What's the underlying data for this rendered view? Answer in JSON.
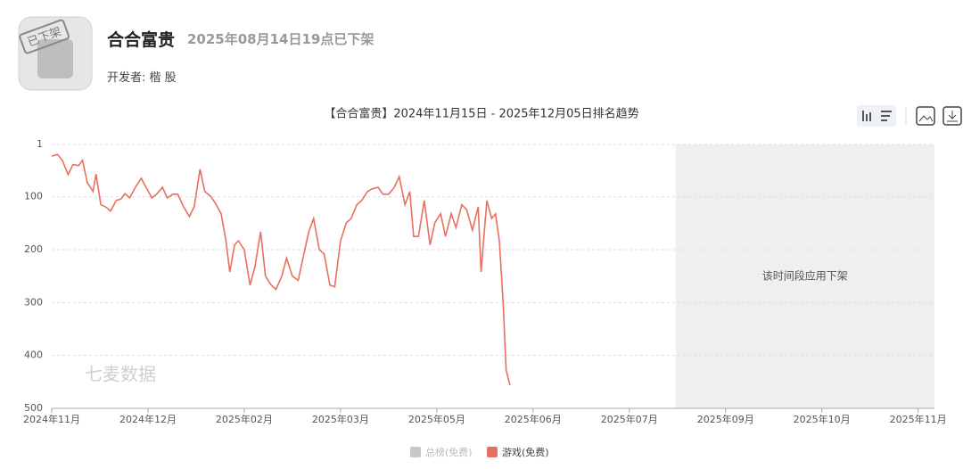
{
  "header": {
    "icon_stamp": "已下架",
    "title": "合合富贵",
    "status": "2025年08月14日19点已下架",
    "developer_label": "开发者:",
    "developer": "楷 股"
  },
  "chart_data": {
    "type": "line",
    "title": "【合合富贵】2024年11月15日 - 2025年12月05日排名趋势",
    "watermark": "七麦数据",
    "offline_label": "该时间段应用下架",
    "offline_range": [
      6.48,
      9.17
    ],
    "xlim": [
      0,
      9.17
    ],
    "xticks": [
      {
        "value": 0,
        "label": "2024年11月"
      },
      {
        "value": 1,
        "label": "2024年12月"
      },
      {
        "value": 2,
        "label": "2025年02月"
      },
      {
        "value": 3,
        "label": "2025年03月"
      },
      {
        "value": 4,
        "label": "2025年05月"
      },
      {
        "value": 5,
        "label": "2025年06月"
      },
      {
        "value": 6,
        "label": "2025年07月"
      },
      {
        "value": 7,
        "label": "2025年09月"
      },
      {
        "value": 8,
        "label": "2025年10月"
      },
      {
        "value": 9,
        "label": "2025年11月"
      }
    ],
    "ylim": [
      1,
      500
    ],
    "y_inverted": true,
    "yticks": [
      1,
      100,
      200,
      300,
      400,
      500
    ],
    "grid": true,
    "x": [
      0,
      0.06,
      0.11,
      0.17,
      0.22,
      0.28,
      0.32,
      0.37,
      0.43,
      0.46,
      0.51,
      0.56,
      0.61,
      0.67,
      0.72,
      0.76,
      0.81,
      0.87,
      0.93,
      0.98,
      1.04,
      1.09,
      1.15,
      1.2,
      1.26,
      1.31,
      1.37,
      1.43,
      1.48,
      1.54,
      1.59,
      1.65,
      1.7,
      1.76,
      1.81,
      1.85,
      1.9,
      1.94,
      2,
      2.06,
      2.11,
      2.17,
      2.22,
      2.28,
      2.33,
      2.39,
      2.44,
      2.5,
      2.56,
      2.61,
      2.67,
      2.72,
      2.78,
      2.83,
      2.89,
      2.94,
      3,
      3.06,
      3.11,
      3.17,
      3.22,
      3.28,
      3.33,
      3.39,
      3.44,
      3.5,
      3.56,
      3.61,
      3.67,
      3.72,
      3.76,
      3.81,
      3.87,
      3.93,
      3.98,
      4.04,
      4.09,
      4.15,
      4.2,
      4.26,
      4.31,
      4.37,
      4.43,
      4.46,
      4.52,
      4.57,
      4.61,
      4.65,
      4.69,
      4.72,
      4.76
    ],
    "series": [
      {
        "name": "总榜(免费)",
        "color": "#c8c8c8",
        "hidden": true
      },
      {
        "name": "游戏(免费)",
        "color": "#e8705f",
        "values": [
          23,
          20,
          31,
          58,
          39,
          41,
          31,
          73,
          90,
          57,
          115,
          119,
          127,
          107,
          104,
          94,
          102,
          82,
          65,
          82,
          102,
          95,
          82,
          102,
          95,
          95,
          119,
          137,
          119,
          48,
          90,
          99,
          112,
          132,
          183,
          242,
          191,
          183,
          200,
          267,
          233,
          166,
          250,
          267,
          275,
          250,
          216,
          250,
          258,
          216,
          166,
          141,
          200,
          208,
          267,
          270,
          183,
          149,
          141,
          115,
          107,
          90,
          85,
          82,
          95,
          95,
          82,
          62,
          115,
          90,
          175,
          175,
          107,
          191,
          149,
          132,
          175,
          132,
          158,
          115,
          124,
          163,
          119,
          242,
          107,
          141,
          132,
          183,
          301,
          427,
          456
        ]
      }
    ]
  }
}
